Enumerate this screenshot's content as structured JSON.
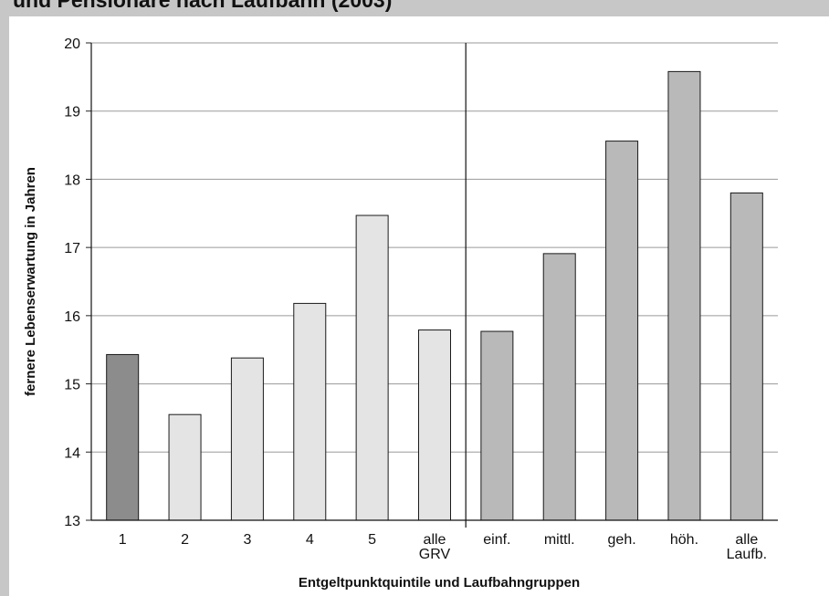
{
  "header": {
    "title": "und Pensionäre nach Laufbahn (2003)"
  },
  "chart_data": {
    "type": "bar",
    "xlabel": "Entgeltpunktquintile und Laufbahngruppen",
    "ylabel": "fernere Lebenserwartung in Jahren",
    "ylim": [
      13,
      20
    ],
    "yticks": [
      13,
      14,
      15,
      16,
      17,
      18,
      19,
      20
    ],
    "grid": true,
    "categories": [
      "1",
      "2",
      "3",
      "4",
      "5",
      "alle GRV",
      "einf.",
      "mittl.",
      "geh.",
      "höh.",
      "alle Laufb."
    ],
    "category_lines": [
      [
        "1"
      ],
      [
        "2"
      ],
      [
        "3"
      ],
      [
        "4"
      ],
      [
        "5"
      ],
      [
        "alle",
        "GRV"
      ],
      [
        "einf."
      ],
      [
        "mittl."
      ],
      [
        "geh."
      ],
      [
        "höh."
      ],
      [
        "alle",
        "Laufb."
      ]
    ],
    "values": [
      15.43,
      14.55,
      15.38,
      16.18,
      17.47,
      15.79,
      15.77,
      16.91,
      18.56,
      19.58,
      17.8
    ],
    "bar_colors": [
      "#8c8c8c",
      "#e4e4e4",
      "#e4e4e4",
      "#e4e4e4",
      "#e4e4e4",
      "#e4e4e4",
      "#b9b9b9",
      "#b9b9b9",
      "#b9b9b9",
      "#b9b9b9",
      "#b9b9b9"
    ],
    "group_separator_after_index": 5
  }
}
